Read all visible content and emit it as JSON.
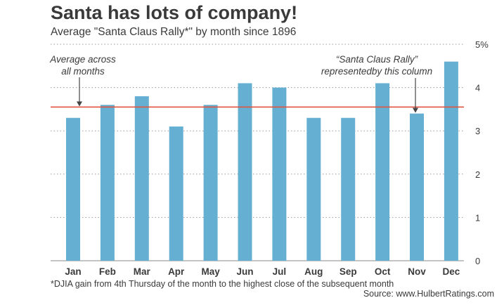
{
  "chart_data": {
    "type": "bar",
    "title": "Santa has lots of company!",
    "subtitle": "Average \"Santa Claus Rally*\" by month since 1896",
    "categories": [
      "Jan",
      "Feb",
      "Mar",
      "Apr",
      "May",
      "Jun",
      "Jul",
      "Aug",
      "Sep",
      "Oct",
      "Nov",
      "Dec"
    ],
    "values": [
      3.3,
      3.6,
      3.8,
      3.1,
      3.6,
      4.1,
      4.0,
      3.3,
      3.3,
      4.1,
      3.4,
      4.6
    ],
    "ylim": [
      0,
      5
    ],
    "yticks": [
      "0",
      "1",
      "2",
      "3",
      "4",
      "5%"
    ],
    "average_line": 3.55,
    "grid": true,
    "colors": {
      "bar": "#65b0d2",
      "average_line": "#e0553f",
      "grid": "#9a9a9a"
    },
    "annotations": {
      "average": [
        "Average across",
        "all months"
      ],
      "rally": [
        "“Santa Claus Rally”",
        "representedby this column"
      ]
    },
    "footnote": "*DJIA gain from 4th Thursday of the month to the highest close of the subsequent month",
    "source": "Source: www.HulbertRatings.com"
  }
}
